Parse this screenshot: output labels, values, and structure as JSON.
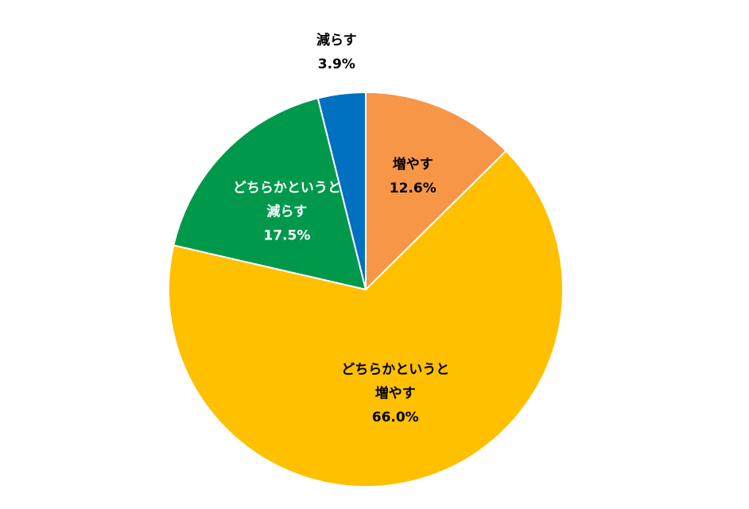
{
  "chart_data": {
    "type": "pie",
    "start_angle_deg": 0,
    "direction": "clockwise",
    "slices": [
      {
        "label_lines": [
          "増やす"
        ],
        "value": 12.6,
        "value_text": "12.6%",
        "color": "#F79646",
        "label_color": "#000000",
        "label_position": "inside"
      },
      {
        "label_lines": [
          "どちらかというと",
          "増やす"
        ],
        "value": 66.0,
        "value_text": "66.0%",
        "color": "#FFC000",
        "label_color": "#000000",
        "label_position": "inside"
      },
      {
        "label_lines": [
          "どちらかというと",
          "減らす"
        ],
        "value": 17.5,
        "value_text": "17.5%",
        "color": "#00994C",
        "label_color": "#ffffff",
        "label_position": "inside"
      },
      {
        "label_lines": [
          "減らす"
        ],
        "value": 3.9,
        "value_text": "3.9%",
        "color": "#0070C0",
        "label_color": "#000000",
        "label_position": "outside"
      }
    ]
  }
}
